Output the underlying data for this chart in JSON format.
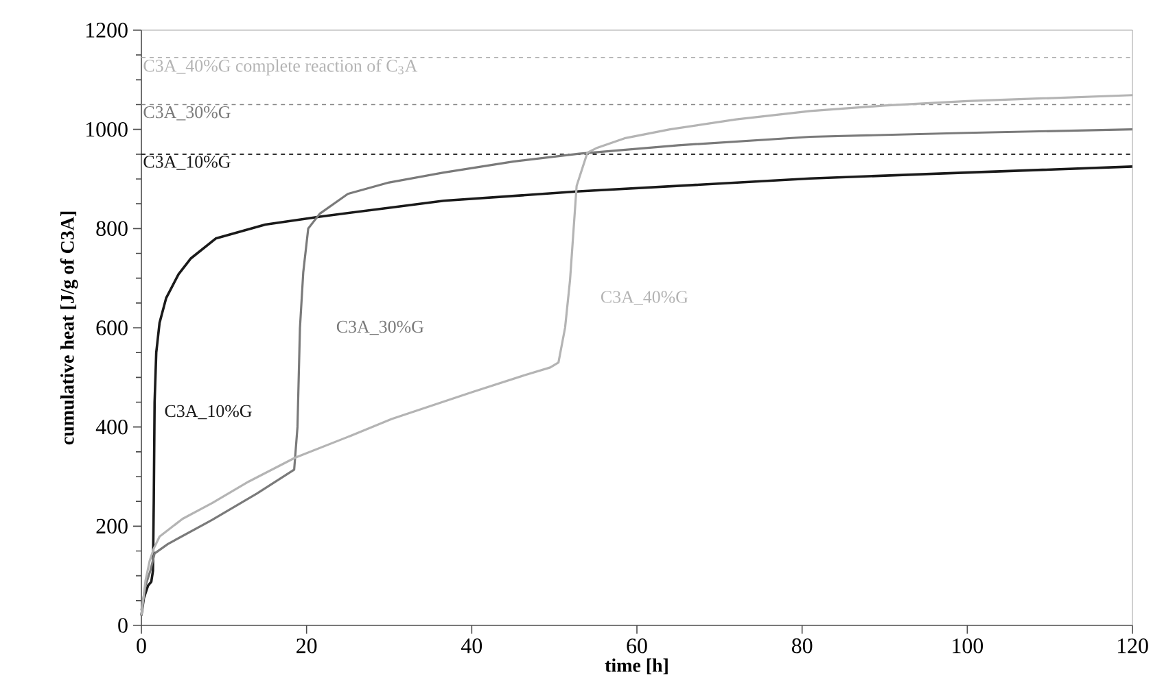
{
  "chart_data": {
    "type": "line",
    "xlabel": "time [h]",
    "ylabel": "cumulative heat [J/g of C3A]",
    "xlim": [
      0,
      120
    ],
    "xticks": [
      0,
      20,
      40,
      60,
      80,
      100,
      120
    ],
    "ylim": [
      0,
      1200
    ],
    "yticks": [
      0,
      200,
      400,
      600,
      800,
      1000,
      1200
    ],
    "grid": false,
    "legend": false,
    "marker": "none",
    "line_style": "solid",
    "series": [
      {
        "name": "C3A_10%G",
        "color": "#1a1a1a",
        "x": [
          0,
          0.3,
          0.8,
          1.2,
          1.4,
          1.5,
          1.6,
          1.8,
          2.2,
          3,
          4.5,
          6,
          9,
          15,
          21.6,
          30,
          36.6,
          53,
          81,
          100,
          120
        ],
        "values": [
          20,
          55,
          80,
          88,
          110,
          250,
          450,
          550,
          610,
          660,
          708,
          740,
          780,
          808,
          824,
          842,
          856,
          875,
          901,
          913,
          925
        ]
      },
      {
        "name": "C3A_30%G",
        "color": "#7a7a7a",
        "x": [
          0,
          0.5,
          1.1,
          1.6,
          3.2,
          8.6,
          14,
          18.5,
          18.9,
          19.2,
          19.6,
          20.2,
          21.6,
          25,
          30,
          36.6,
          45,
          53,
          65,
          81,
          100,
          120
        ],
        "values": [
          30,
          80,
          111,
          145,
          164,
          213,
          266,
          314,
          400,
          600,
          712,
          800,
          830,
          870,
          893,
          913,
          935,
          951,
          968,
          985,
          993,
          1000
        ]
      },
      {
        "name": "C3A_40%G",
        "color": "#b4b4b4",
        "x": [
          0,
          0.5,
          1,
          1.5,
          2.2,
          5,
          8.6,
          13,
          18.6,
          25,
          30.3,
          40,
          46.5,
          49.5,
          50.5,
          51.3,
          51.9,
          52.7,
          54,
          55.2,
          58.5,
          64,
          72,
          81,
          90,
          100,
          120
        ],
        "values": [
          20,
          90,
          130,
          155,
          179,
          215,
          247,
          290,
          338,
          380,
          416,
          470,
          505,
          520,
          530,
          600,
          696,
          886,
          953,
          963,
          982,
          1000,
          1020,
          1037,
          1048,
          1057,
          1069
        ]
      }
    ],
    "ref_lines": [
      {
        "axis": "y",
        "value": 1145,
        "label": "C3A_40%G complete reaction of C$_{3}$A",
        "color": "#aaaaaa",
        "line_style": "dashed"
      },
      {
        "axis": "y",
        "value": 1050,
        "label": "C3A_30%G",
        "color": "#888888",
        "line_style": "dashed"
      },
      {
        "axis": "y",
        "value": 950,
        "label": "C3A_10%G",
        "color": "#000000",
        "line_style": "dashed"
      }
    ]
  }
}
